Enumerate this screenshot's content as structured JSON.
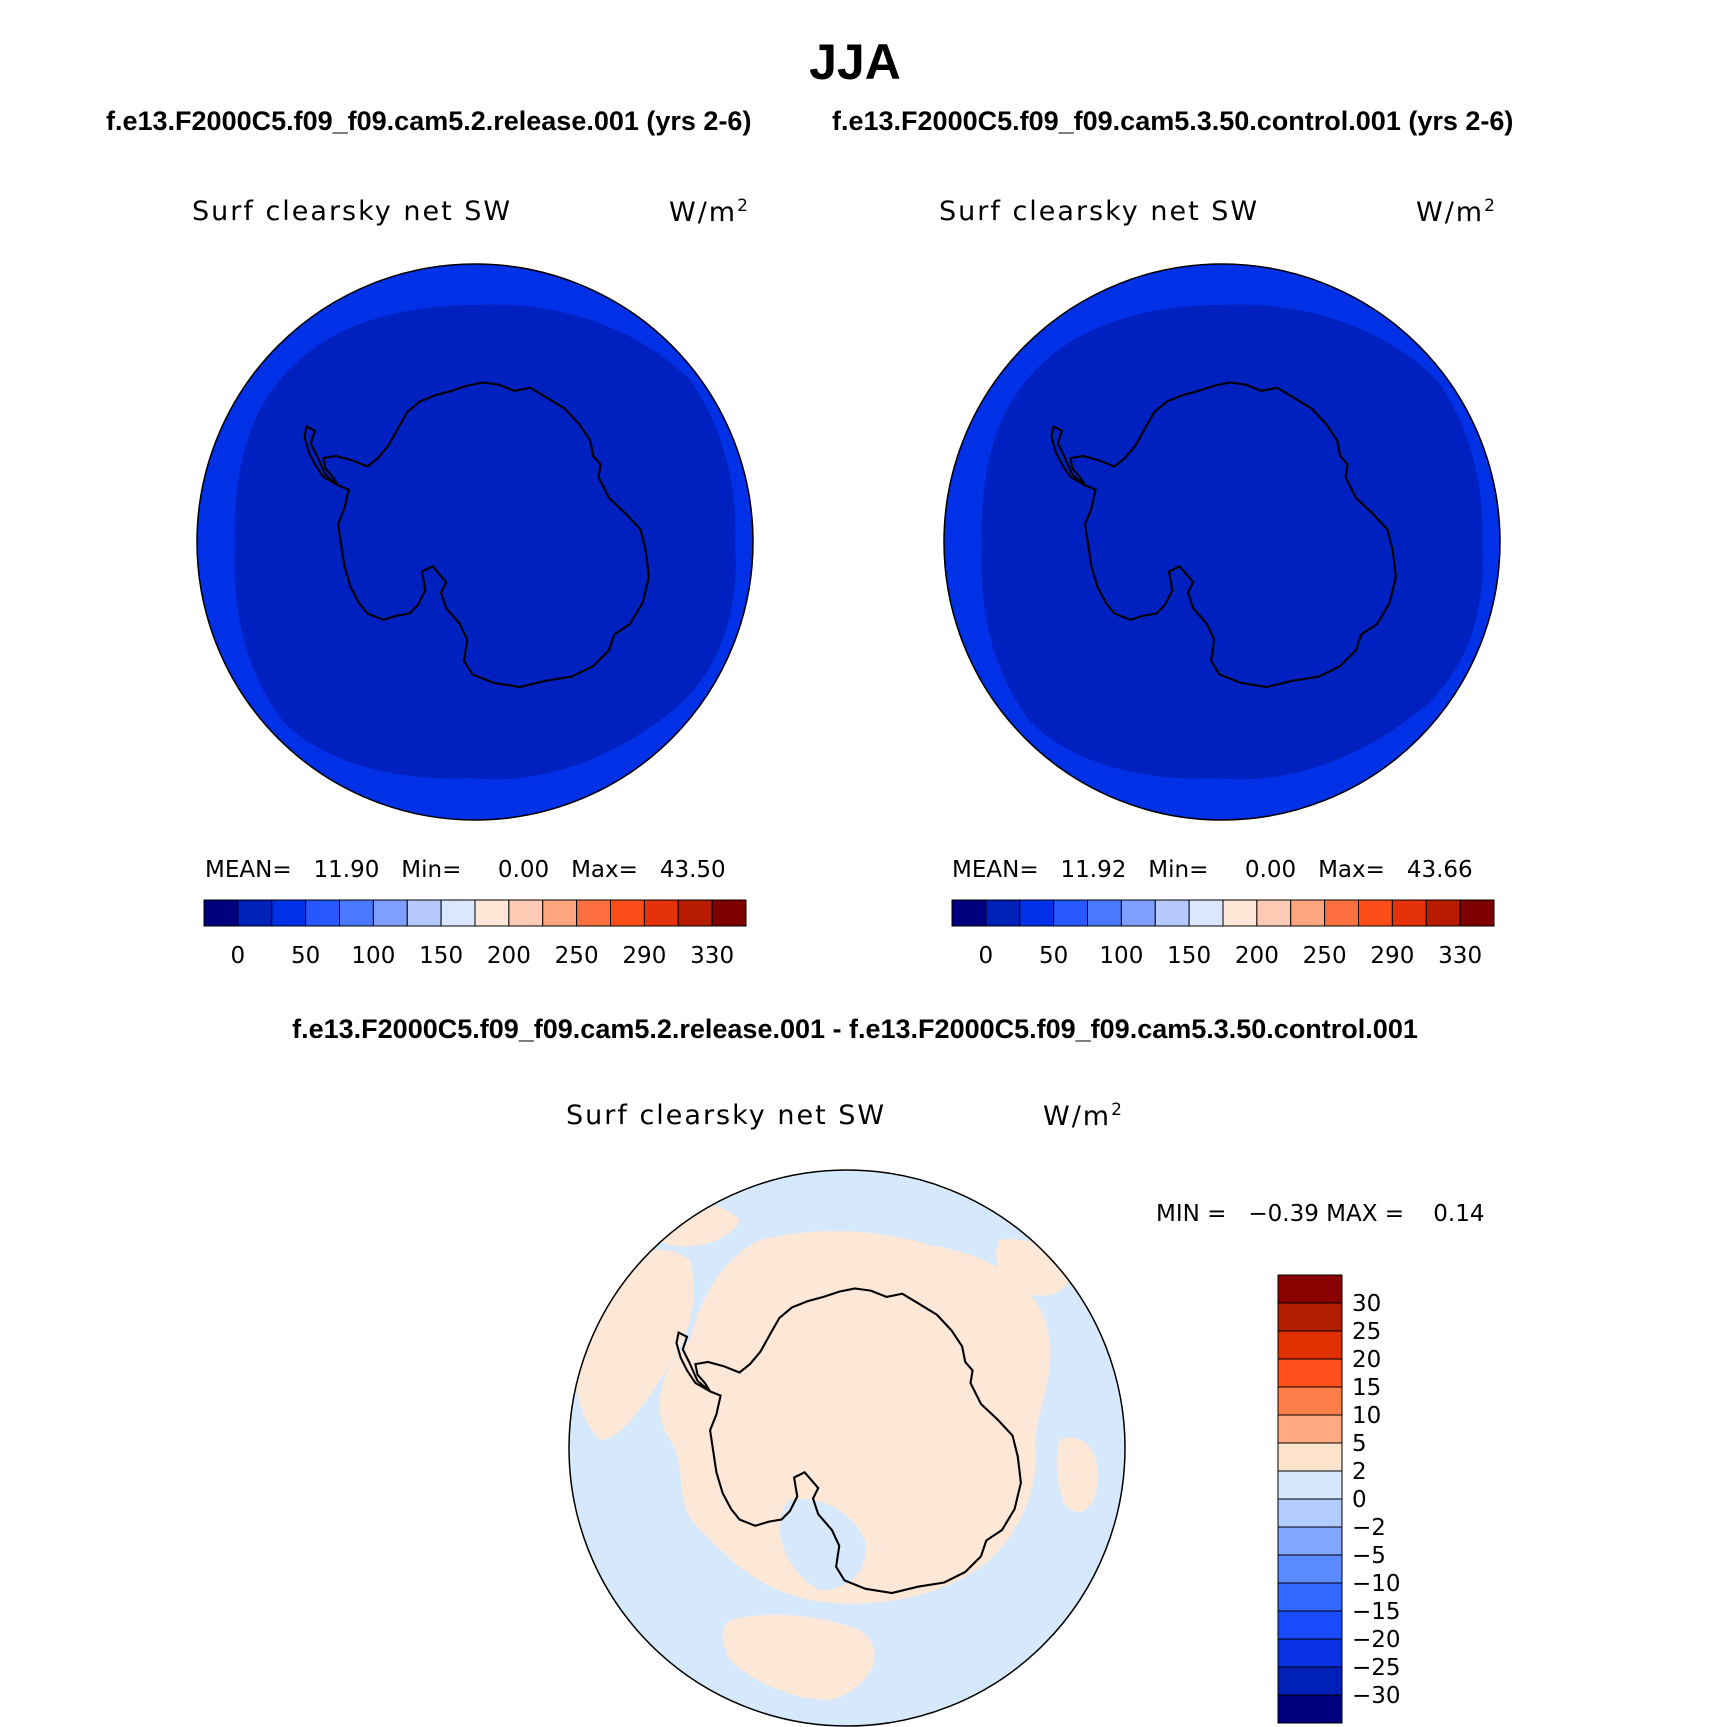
{
  "figure": {
    "season": "JJA",
    "case_left_title": "f.e13.F2000C5.f09_f09.cam5.2.release.001 (yrs 2-6)",
    "case_right_title": "f.e13.F2000C5.f09_f09.cam5.3.50.control.001 (yrs 2-6)",
    "diff_title": "f.e13.F2000C5.f09_f09.cam5.2.release.001 - f.e13.F2000C5.f09_f09.cam5.3.50.control.001"
  },
  "panels": [
    {
      "variable": "Surf clearsky net SW",
      "units": "W/m",
      "units_sup": "2",
      "stats_text": "MEAN=   11.90   Min=     0.00   Max=   43.50",
      "outer_color": "#0031e6",
      "inner_color": "#0020c0"
    },
    {
      "variable": "Surf clearsky net SW",
      "units": "W/m",
      "units_sup": "2",
      "stats_text": "MEAN=   11.92   Min=     0.00   Max=   43.66",
      "outer_color": "#0031e6",
      "inner_color": "#0020c0"
    }
  ],
  "diff_panel": {
    "variable": "Surf clearsky net SW",
    "units": "W/m",
    "units_sup": "2",
    "minmax_text": "MIN =   −0.39 MAX =    0.14",
    "background_color": "#d6e8fb",
    "positive_color": "#fde7d6"
  },
  "colorbar_main": {
    "colors": [
      "#00007f",
      "#0021b8",
      "#0031e6",
      "#2657ff",
      "#4a78ff",
      "#7f9fff",
      "#b6c9ff",
      "#dae8ff",
      "#ffe6d6",
      "#ffcab3",
      "#ffa680",
      "#ff7040",
      "#ff4d1a",
      "#e6320a",
      "#b81c00",
      "#7f0000"
    ],
    "labels": [
      "0",
      "50",
      "100",
      "150",
      "200",
      "250",
      "290",
      "330"
    ]
  },
  "colorbar_diff": {
    "colors_top_to_bottom": [
      "#8b0000",
      "#b21f00",
      "#e03000",
      "#ff4f1a",
      "#ff7f4a",
      "#ffaa80",
      "#fde3cc",
      "#d6e8fb",
      "#b3ccff",
      "#80a6ff",
      "#5a8aff",
      "#3368ff",
      "#1a4cff",
      "#0a33e6",
      "#0020b8",
      "#00007f"
    ],
    "labels": [
      "30",
      "25",
      "20",
      "15",
      "10",
      "5",
      "2",
      "0",
      "−2",
      "−5",
      "−10",
      "−15",
      "−20",
      "−25",
      "−30"
    ]
  }
}
